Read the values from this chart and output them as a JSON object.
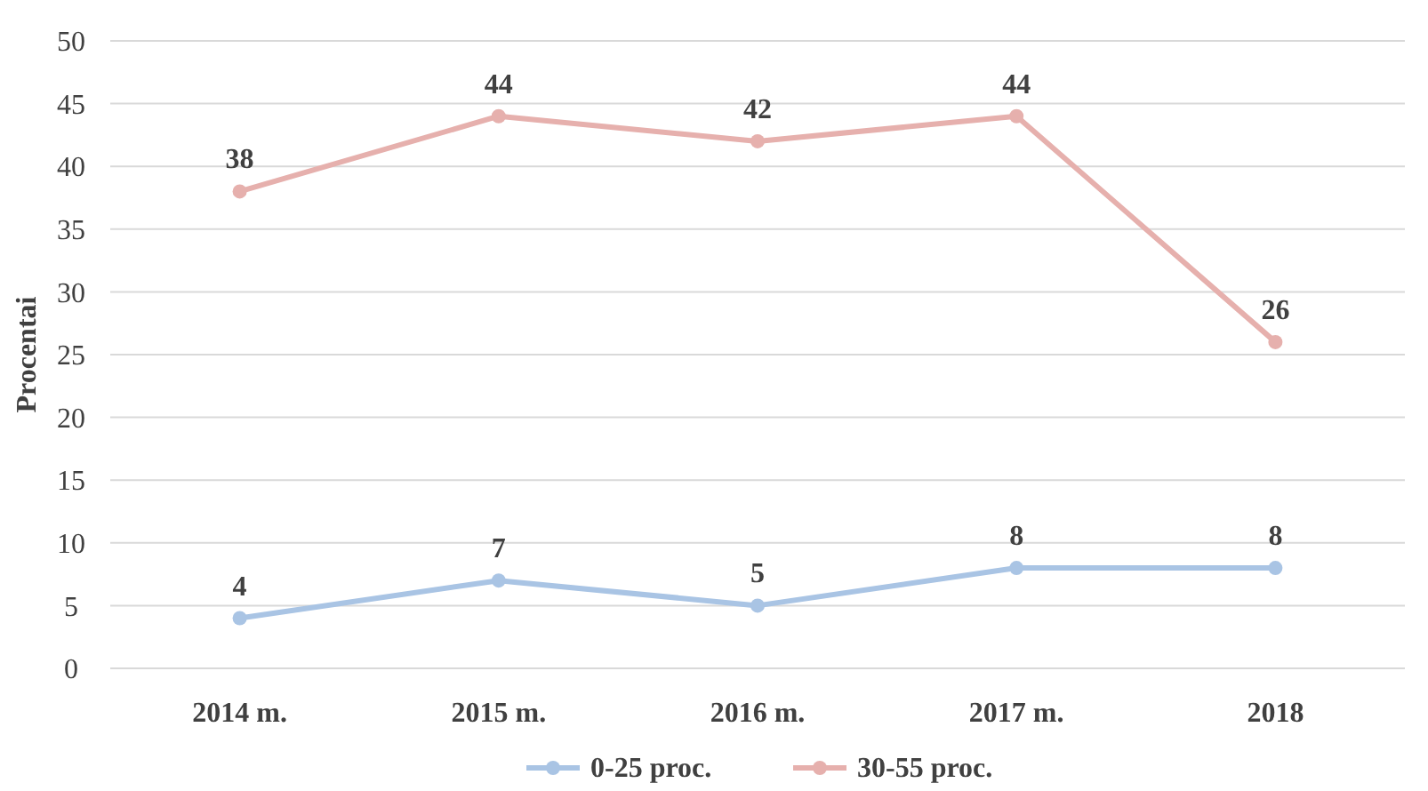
{
  "chart_data": {
    "type": "line",
    "ylabel": "Procentai",
    "categories": [
      "2014 m.",
      "2015 m.",
      "2016 m.",
      "2017 m.",
      "2018"
    ],
    "series": [
      {
        "name": "0-25 proc.",
        "color": "#a9c4e4",
        "values": [
          4,
          7,
          5,
          8,
          8
        ]
      },
      {
        "name": "30-55 proc.",
        "color": "#e6b0ad",
        "values": [
          38,
          44,
          42,
          44,
          26
        ]
      }
    ],
    "ylim": [
      0,
      50
    ],
    "yticks": [
      0,
      5,
      10,
      15,
      20,
      25,
      30,
      35,
      40,
      45,
      50
    ],
    "grid": "y",
    "legend": "bottom",
    "marker": "circle",
    "line_style": "solid",
    "data_labels": true
  }
}
